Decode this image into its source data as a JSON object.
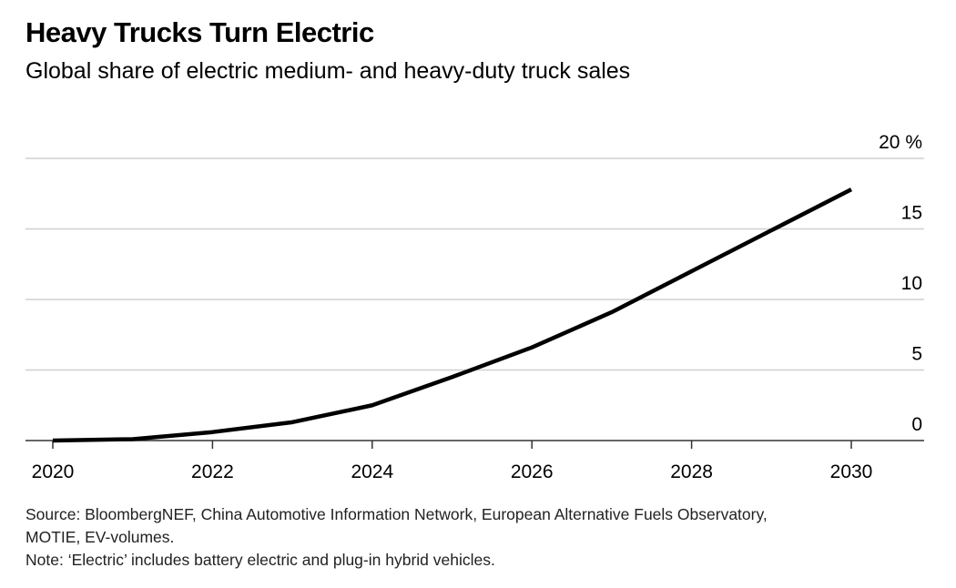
{
  "chart_data": {
    "type": "line",
    "title": "Heavy Trucks Turn Electric",
    "subtitle": "Global share of electric medium- and heavy-duty truck sales",
    "x": [
      2020,
      2021,
      2022,
      2023,
      2024,
      2025,
      2026,
      2027,
      2028,
      2029,
      2030
    ],
    "series": [
      {
        "values": [
          0,
          0.1,
          0.6,
          1.3,
          2.5,
          4.5,
          6.6,
          9.1,
          12.0,
          14.9,
          17.8
        ],
        "color": "#000000"
      }
    ],
    "x_ticks": [
      "2020",
      "2022",
      "2024",
      "2026",
      "2028",
      "2030"
    ],
    "y_ticks": [
      "0",
      "5",
      "10",
      "15",
      "20 %"
    ],
    "ylim": [
      0,
      20
    ],
    "xlim": [
      2020,
      2030
    ],
    "grid": true,
    "source": "Source: BloombergNEF, China Automotive Information Network, European Alternative Fuels Observatory,",
    "source2": "MOTIE, EV-volumes.",
    "note": "Note: ‘Electric’ includes battery electric and plug-in hybrid vehicles."
  }
}
